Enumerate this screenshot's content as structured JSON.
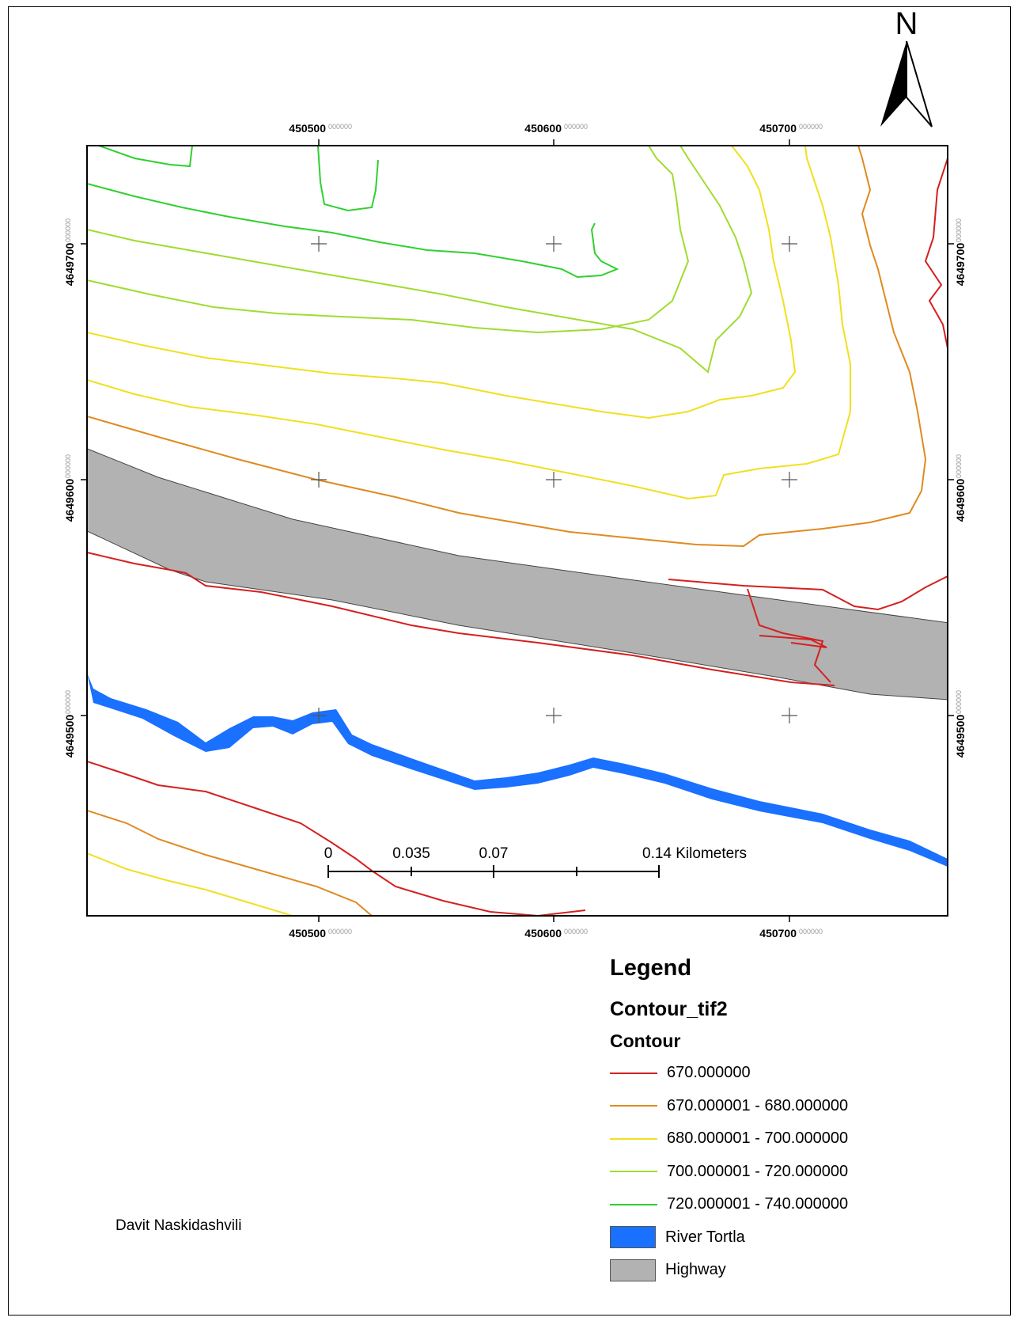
{
  "map": {
    "top_ticks": [
      {
        "main": "450500",
        "suffix": "000000"
      },
      {
        "main": "450600",
        "suffix": "000000"
      },
      {
        "main": "450700",
        "suffix": "000000"
      }
    ],
    "bottom_ticks": [
      {
        "main": "450500",
        "suffix": "000000"
      },
      {
        "main": "450600",
        "suffix": "000000"
      },
      {
        "main": "450700",
        "suffix": "000000"
      }
    ],
    "left_ticks": [
      {
        "main": "4649700",
        "suffix": "000000"
      },
      {
        "main": "4649600",
        "suffix": "000000"
      },
      {
        "main": "4649500",
        "suffix": "000000"
      }
    ],
    "right_ticks": [
      {
        "main": "4649700",
        "suffix": "000000"
      },
      {
        "main": "4649600",
        "suffix": "000000"
      },
      {
        "main": "4649500",
        "suffix": "000000"
      }
    ],
    "north_label": "N",
    "scale_bar": {
      "labels": [
        "0",
        "0.035",
        "0.07",
        "0.14 Kilometers"
      ]
    },
    "colors": {
      "contour_670": "#d42020",
      "contour_670_680": "#e08a20",
      "contour_680_700": "#f0e020",
      "contour_700_720": "#a0dc30",
      "contour_720_740": "#30d030",
      "river": "#1a70ff",
      "highway": "#b2b2b2"
    }
  },
  "legend": {
    "title": "Legend",
    "layer": "Contour_tif2",
    "field": "Contour",
    "items": [
      {
        "label": "670.000000",
        "color": "#d42020",
        "type": "line"
      },
      {
        "label": "670.000001 - 680.000000",
        "color": "#e08a20",
        "type": "line"
      },
      {
        "label": "680.000001 - 700.000000",
        "color": "#f0e020",
        "type": "line"
      },
      {
        "label": "700.000001 - 720.000000",
        "color": "#a0dc30",
        "type": "line"
      },
      {
        "label": "720.000001 - 740.000000",
        "color": "#30d030",
        "type": "line"
      },
      {
        "label": "River Tortla",
        "color": "#1a70ff",
        "type": "fill"
      },
      {
        "label": "Highway",
        "color": "#b2b2b2",
        "type": "fill"
      }
    ]
  },
  "author": "Davit Naskidashvili"
}
